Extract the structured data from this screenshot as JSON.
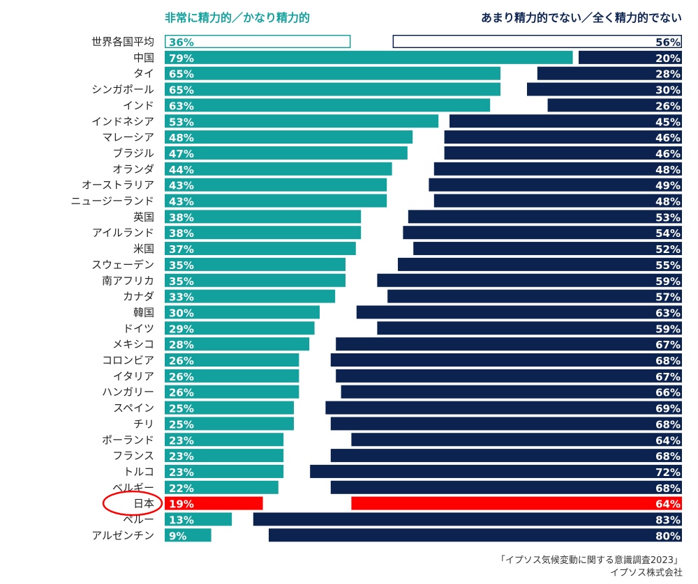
{
  "chart_data": {
    "type": "bar",
    "layout": "diverging-horizontal",
    "legend": {
      "positive_label": "非常に精力的／かなり精力的",
      "negative_label": "あまり精力的でない／全く精力的でない"
    },
    "categories": [
      "世界各国平均",
      "中国",
      "タイ",
      "シンガポール",
      "インド",
      "インドネシア",
      "マレーシア",
      "ブラジル",
      "オランダ",
      "オーストラリア",
      "ニュージーランド",
      "英国",
      "アイルランド",
      "米国",
      "スウェーデン",
      "南アフリカ",
      "カナダ",
      "韓国",
      "ドイツ",
      "メキシコ",
      "コロンビア",
      "イタリア",
      "ハンガリー",
      "スペイン",
      "チリ",
      "ポーランド",
      "フランス",
      "トルコ",
      "ベルギー",
      "日本",
      "ペルー",
      "アルゼンチン"
    ],
    "series": [
      {
        "name": "非常に精力的／かなり精力的",
        "values": [
          36,
          79,
          65,
          65,
          63,
          53,
          48,
          47,
          44,
          43,
          43,
          38,
          38,
          37,
          35,
          35,
          33,
          30,
          29,
          28,
          26,
          26,
          26,
          25,
          25,
          23,
          23,
          23,
          22,
          19,
          13,
          9
        ]
      },
      {
        "name": "あまり精力的でない／全く精力的でない",
        "values": [
          56,
          20,
          28,
          30,
          26,
          45,
          46,
          46,
          48,
          49,
          48,
          53,
          54,
          52,
          55,
          59,
          57,
          63,
          59,
          67,
          68,
          67,
          66,
          69,
          68,
          64,
          68,
          72,
          68,
          64,
          83,
          80
        ]
      }
    ],
    "value_labels": {
      "positive": [
        "36%",
        "79%",
        "65%",
        "65%",
        "63%",
        "53%",
        "48%",
        "47%",
        "44%",
        "43%",
        "43%",
        "38%",
        "38%",
        "37%",
        "35%",
        "35%",
        "33%",
        "30%",
        "29%",
        "28%",
        "26%",
        "26%",
        "26%",
        "25%",
        "25%",
        "23%",
        "23%",
        "23%",
        "22%",
        "19%",
        "13%",
        "9%"
      ],
      "negative": [
        "56%",
        "20%",
        "28%",
        "30%",
        "26%",
        "45%",
        "46%",
        "46%",
        "48%",
        "49%",
        "48%",
        "53%",
        "54%",
        "52%",
        "55%",
        "59%",
        "57%",
        "63%",
        "59%",
        "67%",
        "68%",
        "67%",
        "66%",
        "69%",
        "68%",
        "64%",
        "68%",
        "72%",
        "68%",
        "64%",
        "83%",
        "80%"
      ]
    },
    "highlight_category": "日本",
    "average_category": "世界各国平均",
    "colors": {
      "positive": "#13a19d",
      "negative": "#0c2350",
      "highlight": "#ff0000",
      "average_outline_positive": "#13a19d",
      "average_outline_negative": "#0c2350",
      "label": "#222222"
    }
  },
  "source": {
    "line1": "「イプソス気候変動に関する意識調査2023」",
    "line2": "イプソス株式会社"
  }
}
